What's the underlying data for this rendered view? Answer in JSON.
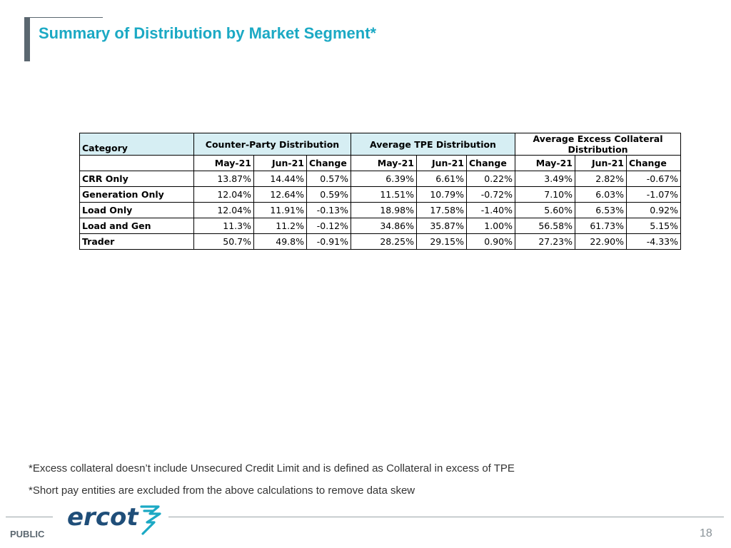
{
  "title": "Summary of Distribution by Market Segment*",
  "table": {
    "category_header": "Category",
    "groups": [
      "Counter-Party Distribution",
      "Average TPE Distribution",
      "Average Excess Collateral Distribution"
    ],
    "group3_line1": "Average Excess Collateral",
    "group3_line2": "Distribution",
    "subheaders": [
      "May-21",
      "Jun-21",
      "Change"
    ],
    "rows": [
      {
        "category": "CRR Only",
        "cp": [
          "13.87%",
          "14.44%",
          "0.57%"
        ],
        "tpe": [
          "6.39%",
          "6.61%",
          "0.22%"
        ],
        "exc": [
          "3.49%",
          "2.82%",
          "-0.67%"
        ]
      },
      {
        "category": "Generation Only",
        "cp": [
          "12.04%",
          "12.64%",
          "0.59%"
        ],
        "tpe": [
          "11.51%",
          "10.79%",
          "-0.72%"
        ],
        "exc": [
          "7.10%",
          "6.03%",
          "-1.07%"
        ]
      },
      {
        "category": "Load Only",
        "cp": [
          "12.04%",
          "11.91%",
          "-0.13%"
        ],
        "tpe": [
          "18.98%",
          "17.58%",
          "-1.40%"
        ],
        "exc": [
          "5.60%",
          "6.53%",
          "0.92%"
        ]
      },
      {
        "category": "Load and Gen",
        "cp": [
          "11.3%",
          "11.2%",
          "-0.12%"
        ],
        "tpe": [
          "34.86%",
          "35.87%",
          "1.00%"
        ],
        "exc": [
          "56.58%",
          "61.73%",
          "5.15%"
        ]
      },
      {
        "category": "Trader",
        "cp": [
          "50.7%",
          "49.8%",
          "-0.91%"
        ],
        "tpe": [
          "28.25%",
          "29.15%",
          "0.90%"
        ],
        "exc": [
          "27.23%",
          "22.90%",
          "-4.33%"
        ]
      }
    ]
  },
  "footnotes": [
    "*Excess collateral doesn’t include Unsecured Credit Limit and is defined as Collateral in excess of TPE",
    "*Short pay entities are excluded from the above calculations to remove data skew"
  ],
  "footer": {
    "classification": "PUBLIC",
    "page_number": "18",
    "logo_text": "ercot"
  },
  "colors": {
    "title": "#1ba9c4",
    "header_tint": "#d6eef3",
    "logo_blue": "#1f4e79",
    "logo_teal": "#1ba9c4"
  }
}
